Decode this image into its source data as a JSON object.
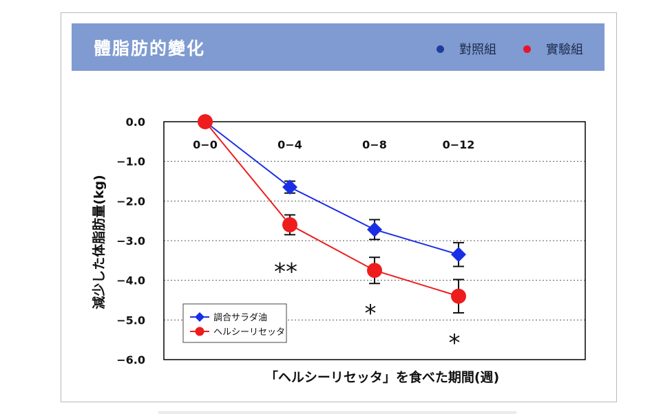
{
  "banner": {
    "title": "體脂肪的變化",
    "legend": [
      {
        "label": "對照組",
        "color": "#1f3d9e"
      },
      {
        "label": "實驗組",
        "color": "#e8142a"
      }
    ]
  },
  "chart_data": {
    "type": "line",
    "ylabel": "減少した体脂肪量(kg)",
    "xlabel": "「ヘルシーリセッタ」を食べた期間(週)",
    "ylim": [
      -6.0,
      0.0
    ],
    "yticks": [
      0.0,
      -1.0,
      -2.0,
      -3.0,
      -4.0,
      -5.0,
      -6.0
    ],
    "ytick_labels": [
      "0.0",
      "−1.0",
      "−2.0",
      "−3.0",
      "−4.0",
      "−5.0",
      "−6.0"
    ],
    "grid": "horizontal-dotted",
    "categories": [
      "0-0",
      "0-4",
      "0-8",
      "0-12"
    ],
    "category_labels": [
      "0−0",
      "0−4",
      "0−8",
      "0−12"
    ],
    "series": [
      {
        "name": "調合サラダ油",
        "color": "#1a2ee6",
        "marker": "diamond",
        "values": [
          0.0,
          -1.65,
          -2.72,
          -3.35
        ],
        "errors": [
          0.0,
          0.15,
          0.25,
          0.3
        ]
      },
      {
        "name": "ヘルシーリセッタ",
        "color": "#ee1c1c",
        "marker": "circle",
        "values": [
          0.0,
          -2.6,
          -3.75,
          -4.4
        ],
        "errors": [
          0.0,
          0.25,
          0.33,
          0.42
        ]
      }
    ],
    "significance": [
      {
        "category": "0-4",
        "label": "**",
        "y": -3.7
      },
      {
        "category": "0-8",
        "label": "*",
        "y": -4.75
      },
      {
        "category": "0-12",
        "label": "*",
        "y": -5.5
      }
    ],
    "legend_position": "bottom-left"
  }
}
